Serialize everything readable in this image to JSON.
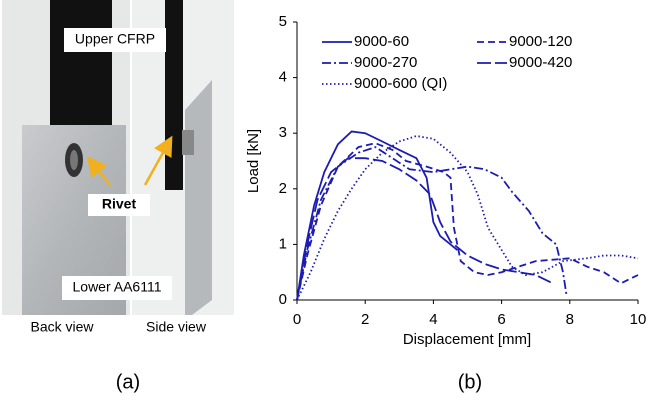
{
  "photo": {
    "labels": [
      "Upper CFRP",
      "Rivet",
      "Lower AA6111",
      "Back view",
      "Side view"
    ]
  },
  "panels": [
    "(a)",
    "(b)"
  ],
  "chart_data": {
    "type": "line",
    "xlabel": "Displacement [mm]",
    "ylabel": "Load [kN]",
    "xlim": [
      0,
      10
    ],
    "ylim": [
      0,
      5
    ],
    "xticks": [
      0,
      2,
      4,
      6,
      8,
      10
    ],
    "yticks": [
      0,
      1,
      2,
      3,
      4,
      5
    ],
    "legend": "upper left",
    "series": [
      {
        "name": "9000-60",
        "color": "#1c1cb4",
        "linestyle": "solid",
        "x": [
          0,
          0.2,
          0.5,
          0.8,
          1.2,
          1.6,
          2.0,
          2.5,
          3.0,
          3.5,
          3.8,
          4.0,
          4.2,
          4.5,
          4.7
        ],
        "values": [
          0,
          0.8,
          1.7,
          2.3,
          2.8,
          3.03,
          3.0,
          2.85,
          2.7,
          2.55,
          2.2,
          1.4,
          1.15,
          1.0,
          0.9
        ]
      },
      {
        "name": "9000-120",
        "color": "#1c1cb4",
        "linestyle": "dashed",
        "x": [
          0,
          0.3,
          0.7,
          1.2,
          1.8,
          2.3,
          2.8,
          3.2,
          3.8,
          4.3,
          4.5,
          4.6,
          4.8,
          5.2,
          5.6,
          6.0,
          7.0,
          8.0,
          8.5,
          9.0,
          9.5,
          10
        ],
        "values": [
          0,
          0.8,
          1.7,
          2.4,
          2.75,
          2.82,
          2.7,
          2.5,
          2.4,
          2.3,
          2.2,
          1.3,
          0.7,
          0.5,
          0.45,
          0.5,
          0.7,
          0.75,
          0.6,
          0.5,
          0.3,
          0.45
        ]
      },
      {
        "name": "9000-270",
        "color": "#1c1cb4",
        "linestyle": "dashdot",
        "x": [
          0,
          0.3,
          0.7,
          1.2,
          1.8,
          2.3,
          2.8,
          3.3,
          4.0,
          4.5,
          5.0,
          5.5,
          6.0,
          6.3,
          6.8,
          7.2,
          7.6,
          7.8,
          7.9
        ],
        "values": [
          0,
          0.9,
          1.8,
          2.4,
          2.65,
          2.75,
          2.55,
          2.35,
          2.3,
          2.35,
          2.4,
          2.35,
          2.2,
          1.95,
          1.6,
          1.2,
          1.0,
          0.5,
          0.1
        ]
      },
      {
        "name": "9000-420",
        "color": "#1c1cb4",
        "linestyle": "longdash",
        "x": [
          0,
          0.3,
          0.6,
          1.0,
          1.5,
          2.0,
          2.5,
          3.0,
          3.5,
          3.9,
          4.2,
          4.5,
          5.0,
          5.5,
          6.0,
          6.5,
          7.0,
          7.5
        ],
        "values": [
          0,
          1.0,
          1.8,
          2.3,
          2.55,
          2.55,
          2.5,
          2.35,
          2.15,
          1.9,
          1.4,
          1.05,
          0.8,
          0.65,
          0.55,
          0.5,
          0.45,
          0.3
        ]
      },
      {
        "name": "9000-600 (QI)",
        "color": "#1c1cb4",
        "linestyle": "dotted",
        "x": [
          0,
          0.4,
          0.8,
          1.2,
          1.6,
          2.0,
          2.5,
          3.0,
          3.5,
          4.0,
          4.5,
          5.0,
          5.3,
          5.6,
          6.0,
          6.3,
          6.7,
          7.2,
          7.8,
          8.5,
          9.0,
          9.5,
          10
        ],
        "values": [
          0,
          0.5,
          1.1,
          1.6,
          2.0,
          2.35,
          2.65,
          2.85,
          2.95,
          2.9,
          2.65,
          2.3,
          1.9,
          1.3,
          0.9,
          0.6,
          0.45,
          0.5,
          0.7,
          0.75,
          0.8,
          0.8,
          0.75
        ]
      }
    ]
  }
}
